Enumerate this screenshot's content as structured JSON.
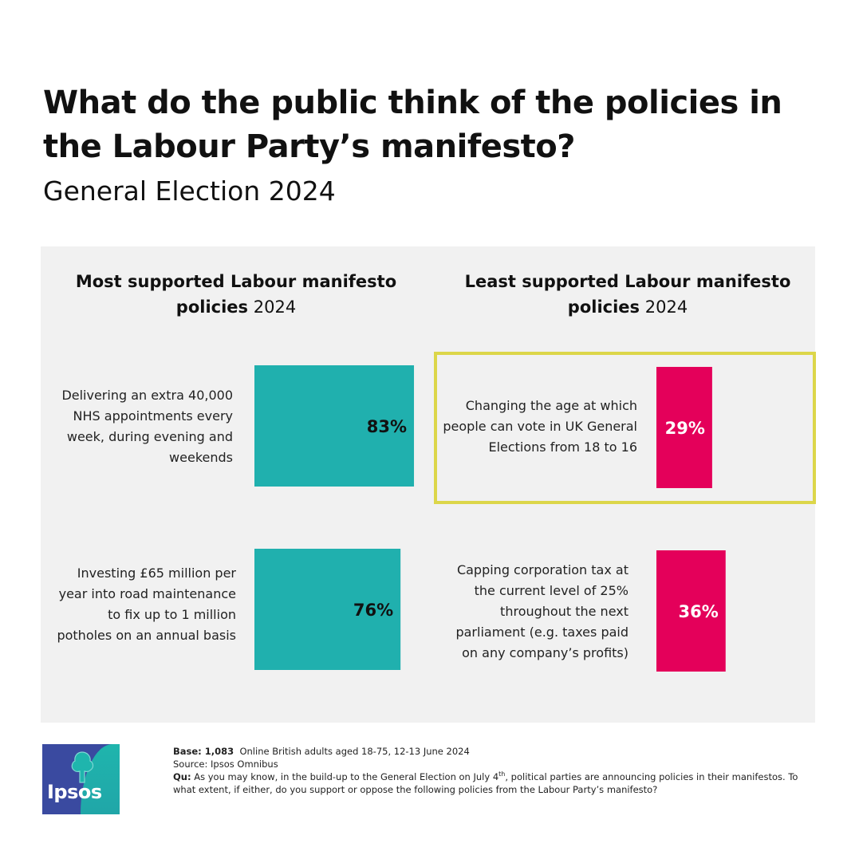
{
  "title": "What do the public think of the policies in the Labour Party’s manifesto?",
  "subtitle": "General Election 2024",
  "chart_data": [
    {
      "type": "bar",
      "heading_bold": "Most supported Labour manifesto policies",
      "heading_light": "2024",
      "categories": [
        "Delivering an extra 40,000 NHS appointments every week, during evening and weekends",
        "Investing £65 million per year into road maintenance to fix up to 1 million potholes on an annual basis"
      ],
      "values": [
        83,
        76
      ],
      "labels": [
        "83%",
        "76%"
      ],
      "unit": "%",
      "color": "#20b0ae"
    },
    {
      "type": "bar",
      "heading_bold": "Least supported Labour manifesto policies",
      "heading_light": "2024",
      "categories": [
        "Changing the age at which people can vote in UK General Elections from 18 to 16",
        "Capping corporation tax at the current level of 25% throughout the next parliament (e.g. taxes paid on any company’s profits)"
      ],
      "values": [
        29,
        36
      ],
      "labels": [
        "29%",
        "36%"
      ],
      "unit": "%",
      "color": "#e4005a",
      "highlighted_index": 0
    }
  ],
  "footer": {
    "base_label": "Base: 1,083",
    "base_text": "Online British adults aged 18-75, 12-13 June 2024",
    "source": "Source: Ipsos Omnibus",
    "qu_label": "Qu:",
    "qu_text_1": "As you may know, in the build-up to the General Election on July 4",
    "qu_sup": "th",
    "qu_text_2": ", political parties are announcing policies in their manifestos. To what extent, if either, do you support or oppose the following policies from the Labour Party’s manifesto?"
  },
  "logo": {
    "text": "Ipsos",
    "icon": "tree-icon"
  }
}
